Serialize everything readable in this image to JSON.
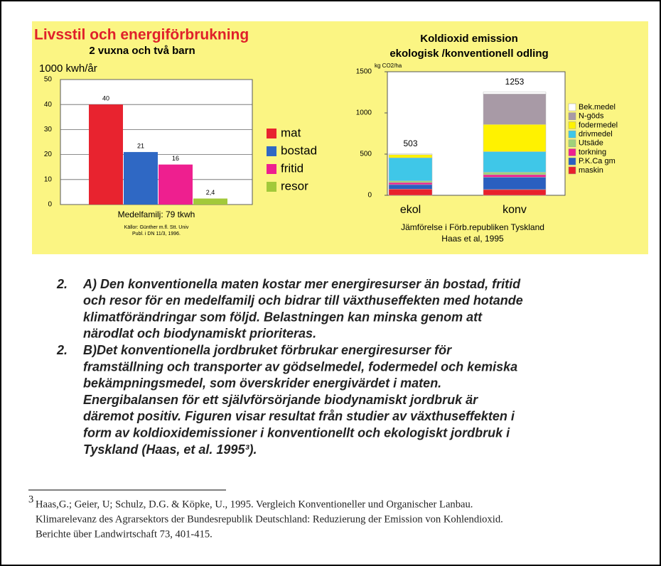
{
  "chart_data": [
    {
      "type": "bar",
      "title": "Livsstil och energiförbrukning",
      "subtitle": "2 vuxna och två barn",
      "y_label": "1000 kwh/år",
      "categories": [
        "mat",
        "bostad",
        "fritid",
        "resor"
      ],
      "values": [
        40,
        21,
        16,
        2.4
      ],
      "value_labels": [
        "40",
        "21",
        "16",
        "2,4"
      ],
      "colors": [
        "#e8232f",
        "#2f68c4",
        "#ee1f8f",
        "#a2c93a"
      ],
      "ylim": [
        0,
        50
      ],
      "yticks": [
        0,
        10,
        20,
        30,
        40,
        50
      ],
      "grid": true,
      "x_label": "Medelfamilj: 79 tkwh",
      "source": [
        "Källor: Günther m.fl. Stt. Univ",
        "Publ. i DN 11/3, 1996."
      ]
    },
    {
      "type": "stacked_bar",
      "title": "Koldioxid emission",
      "subtitle": "ekologisk /konventionell odling",
      "y_label": "kg CO2/ha",
      "categories": [
        "ekol",
        "konv"
      ],
      "series": [
        {
          "name": "maskin",
          "color": "#e8202c",
          "values": [
            75,
            70
          ]
        },
        {
          "name": "P.K.Ca gm",
          "color": "#2a5fc0",
          "values": [
            55,
            150
          ]
        },
        {
          "name": "torkning",
          "color": "#ee1f8f",
          "values": [
            25,
            30
          ]
        },
        {
          "name": "Utsäde",
          "color": "#9fd27a",
          "values": [
            20,
            30
          ]
        },
        {
          "name": "drivmedel",
          "color": "#3fc7e8",
          "values": [
            280,
            250
          ]
        },
        {
          "name": "fodermedel",
          "color": "#fff200",
          "values": [
            38,
            330
          ]
        },
        {
          "name": "N-göds",
          "color": "#a89aa6",
          "values": [
            0,
            370
          ]
        },
        {
          "name": "Bek.medel",
          "color": "#ffffff",
          "values": [
            10,
            23
          ]
        }
      ],
      "totals": [
        503,
        1253
      ],
      "ylim": [
        0,
        1500
      ],
      "yticks": [
        0,
        500,
        1000,
        1500
      ],
      "grid": false,
      "notes": [
        "Jämförelse i Förb.republiken Tyskland",
        "Haas et al, 1995"
      ]
    }
  ],
  "items": [
    {
      "number": "2.",
      "lines": [
        "A)  Den konventionella maten kostar mer energiresurser än bostad, fritid",
        "och resor för en medelfamilj och bidrar till växthuseffekten med hotande",
        "klimatförändringar som följd. Belastningen kan minska genom att",
        "närodlat och biodynamiskt prioriteras."
      ]
    },
    {
      "number": "2.",
      "lines": [
        "B)Det konventionella jordbruket förbrukar energiresurser för",
        "framställning och transporter av gödselmedel, fodermedel och kemiska",
        "bekämpningsmedel, som överskrider energivärdet i maten.",
        "Energibalansen för ett självförsörjande biodynamiskt jordbruk är",
        "däremot positiv. Figuren visar resultat från studier av växthuseffekten i",
        "form av koldioxidemissioner i konventionellt och ekologiskt jordbruk i",
        "Tyskland (Haas, et al. 1995³)."
      ]
    }
  ],
  "footnote": {
    "marker": "3",
    "lines": [
      "Haas,G.; Geier, U; Schulz, D.G. & Köpke, U., 1995.  Vergleich Konventioneller und Organischer Lanbau.",
      "Klimarelevanz des Agrarsektors der Bundesrepublik Deutschland: Reduzierung der Emission von Kohlendioxid.",
      "Berichte  über Landwirtschaft 73, 401-415."
    ]
  }
}
